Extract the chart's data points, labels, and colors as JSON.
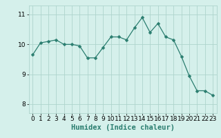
{
  "x": [
    0,
    1,
    2,
    3,
    4,
    5,
    6,
    7,
    8,
    9,
    10,
    11,
    12,
    13,
    14,
    15,
    16,
    17,
    18,
    19,
    20,
    21,
    22,
    23
  ],
  "y": [
    9.65,
    10.05,
    10.1,
    10.15,
    10.0,
    10.0,
    9.95,
    9.55,
    9.55,
    9.9,
    10.25,
    10.25,
    10.15,
    10.55,
    10.9,
    10.4,
    10.7,
    10.25,
    10.15,
    9.6,
    8.95,
    8.45,
    8.45,
    8.3
  ],
  "line_color": "#2a7d6f",
  "marker": "D",
  "marker_size": 2.5,
  "bg_color": "#d5f0eb",
  "grid_color": "#aed4cc",
  "xlabel": "Humidex (Indice chaleur)",
  "xlim": [
    -0.5,
    23.5
  ],
  "ylim": [
    7.7,
    11.3
  ],
  "yticks": [
    8,
    9,
    10,
    11
  ],
  "xticks": [
    0,
    1,
    2,
    3,
    4,
    5,
    6,
    7,
    8,
    9,
    10,
    11,
    12,
    13,
    14,
    15,
    16,
    17,
    18,
    19,
    20,
    21,
    22,
    23
  ],
  "tick_fontsize": 6.5,
  "xlabel_fontsize": 7.5
}
